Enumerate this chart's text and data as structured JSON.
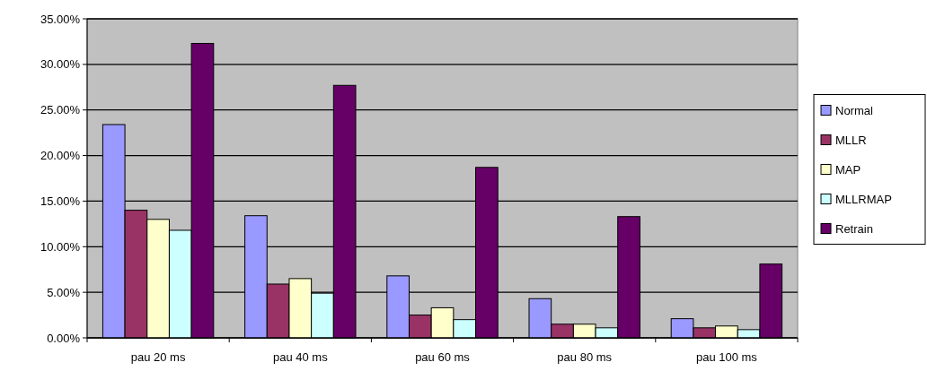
{
  "chart_data": {
    "type": "bar",
    "categories": [
      "pau 20 ms",
      "pau 40 ms",
      "pau 60 ms",
      "pau 80 ms",
      "pau 100 ms"
    ],
    "series": [
      {
        "name": "Normal",
        "color": "#9999ff",
        "values": [
          23.4,
          13.4,
          6.8,
          4.3,
          2.1
        ]
      },
      {
        "name": "MLLR",
        "color": "#993366",
        "values": [
          14.0,
          5.9,
          2.5,
          1.5,
          1.1
        ]
      },
      {
        "name": "MAP",
        "color": "#ffffcc",
        "values": [
          13.0,
          6.5,
          3.3,
          1.5,
          1.3
        ]
      },
      {
        "name": "MLLRMAP",
        "color": "#ccffff",
        "values": [
          11.8,
          4.9,
          2.0,
          1.1,
          0.9
        ]
      },
      {
        "name": "Retrain",
        "color": "#660066",
        "values": [
          32.3,
          27.7,
          18.7,
          13.3,
          8.1
        ]
      }
    ],
    "ylim": [
      0,
      35
    ],
    "yticks": [
      {
        "value": 0,
        "label": "0.00%"
      },
      {
        "value": 5,
        "label": "5.00%"
      },
      {
        "value": 10,
        "label": "10.00%"
      },
      {
        "value": 15,
        "label": "15.00%"
      },
      {
        "value": 20,
        "label": "20.00%"
      },
      {
        "value": 25,
        "label": "25.00%"
      },
      {
        "value": 30,
        "label": "30.00%"
      },
      {
        "value": 35,
        "label": "35.00%"
      }
    ],
    "grid": "y",
    "legend": "right"
  }
}
